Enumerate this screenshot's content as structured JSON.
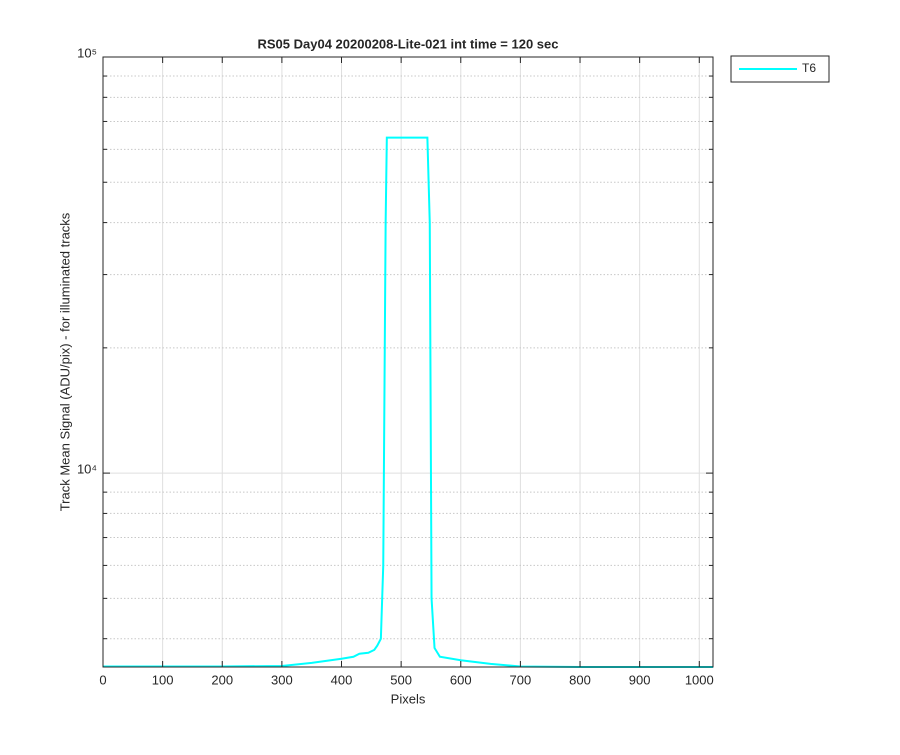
{
  "chart_data": {
    "type": "line",
    "title": "RS05 Day04 20200208-Lite-021 int time = 120 sec",
    "xlabel": "Pixels",
    "ylabel": "Track Mean Signal (ADU/pix) - for illuminated tracks",
    "x": [
      0,
      100,
      200,
      300,
      350,
      400,
      420,
      430,
      445,
      455,
      460,
      466,
      470,
      474,
      476,
      544,
      548,
      551,
      556,
      565,
      600,
      650,
      700,
      800,
      900,
      1023
    ],
    "series": [
      {
        "name": "T6",
        "color": "#00ffff",
        "values": [
          3430,
          3430,
          3430,
          3440,
          3500,
          3580,
          3620,
          3680,
          3700,
          3760,
          3850,
          4000,
          6000,
          40000,
          64000,
          64000,
          40000,
          5000,
          3800,
          3620,
          3550,
          3480,
          3430,
          3420,
          3420,
          3420
        ]
      }
    ],
    "xlim": [
      0,
      1023
    ],
    "xticks": [
      0,
      100,
      200,
      300,
      400,
      500,
      600,
      700,
      800,
      900,
      1000
    ],
    "ylim": [
      3420,
      100000
    ],
    "yscale": "log",
    "yticks": [
      {
        "value": 10000,
        "label": "10⁴"
      },
      {
        "value": 100000,
        "label": "10⁵"
      }
    ],
    "yminorticks": [
      4000,
      5000,
      6000,
      7000,
      8000,
      9000,
      20000,
      30000,
      40000,
      50000,
      60000,
      70000,
      80000,
      90000
    ],
    "grid": true,
    "legend": "outside-right"
  }
}
